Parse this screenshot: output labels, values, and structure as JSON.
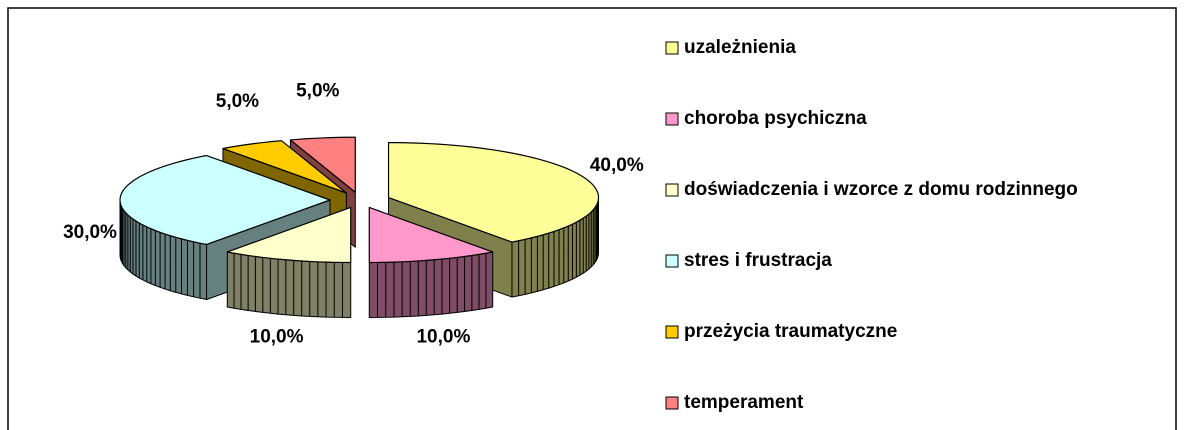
{
  "chart_data": {
    "type": "pie3d",
    "categories": [
      "uzależnienia",
      "choroba psychiczna",
      "doświadczenia i wzorce z domu rodzinnego",
      "stres i frustracja",
      "przeżycia traumatyczne",
      "temperament"
    ],
    "values": [
      40,
      10,
      10,
      30,
      5,
      5
    ],
    "value_labels": [
      "40,0%",
      "10,0%",
      "10,0%",
      "30,0%",
      "5,0%",
      "5,0%"
    ],
    "colors": [
      "#FFFF99",
      "#FF99CC",
      "#FFFFCC",
      "#CCFFFF",
      "#FFCC00",
      "#FF8080"
    ],
    "legend": "right"
  }
}
